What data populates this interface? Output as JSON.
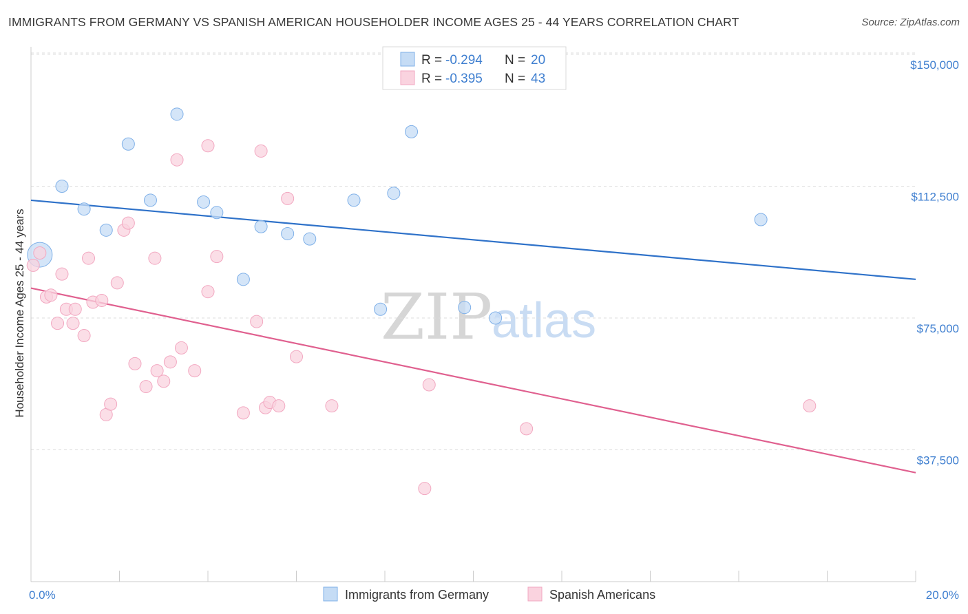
{
  "header": {
    "title": "IMMIGRANTS FROM GERMANY VS SPANISH AMERICAN HOUSEHOLDER INCOME AGES 25 - 44 YEARS CORRELATION CHART",
    "source": "Source: ZipAtlas.com"
  },
  "watermark": {
    "zip": "ZIP",
    "atlas": "atlas"
  },
  "chart_data": {
    "type": "scatter",
    "ylabel": "Householder Income Ages 25 - 44 years",
    "xlim": [
      0,
      20
    ],
    "ylim": [
      0,
      155000
    ],
    "y_ticks": [
      {
        "value": 37500,
        "label": "$37,500"
      },
      {
        "value": 75000,
        "label": "$75,000"
      },
      {
        "value": 112500,
        "label": "$112,500"
      },
      {
        "value": 150000,
        "label": "$150,000"
      }
    ],
    "x_tick_labels": [
      {
        "value": 0,
        "label": "0.0%"
      },
      {
        "value": 20,
        "label": "20.0%"
      }
    ],
    "x_minor_ticks": [
      0,
      2,
      4,
      6,
      8,
      10,
      12,
      14,
      16,
      18,
      20
    ],
    "grid": true,
    "legend": {
      "placement": "top-center",
      "entries": [
        {
          "r_label": "R = ",
          "r_value": "-0.294",
          "n_label": "N = ",
          "n_value": "20"
        },
        {
          "r_label": "R = ",
          "r_value": "-0.395",
          "n_label": "N = ",
          "n_value": "43"
        }
      ]
    },
    "series": [
      {
        "name": "Immigrants from Germany",
        "color": "#7fb0e8",
        "fill": "#c5dcf5",
        "line_color": "#2f72c9",
        "trend": [
          [
            0,
            108500
          ],
          [
            20,
            86000
          ]
        ],
        "points": [
          [
            0.2,
            93000,
            "large"
          ],
          [
            0.7,
            112500
          ],
          [
            1.2,
            106000
          ],
          [
            1.7,
            100000
          ],
          [
            2.2,
            124500
          ],
          [
            2.7,
            108500
          ],
          [
            3.3,
            133000
          ],
          [
            3.9,
            108000
          ],
          [
            4.2,
            105000
          ],
          [
            4.8,
            86000
          ],
          [
            5.2,
            101000
          ],
          [
            5.8,
            99000
          ],
          [
            6.3,
            97500
          ],
          [
            7.3,
            108500
          ],
          [
            7.9,
            77500
          ],
          [
            8.2,
            110500
          ],
          [
            8.6,
            128000
          ],
          [
            9.8,
            78000
          ],
          [
            10.5,
            75000
          ],
          [
            16.5,
            103000
          ]
        ]
      },
      {
        "name": "Spanish Americans",
        "color": "#f2a7c0",
        "fill": "#fad3df",
        "line_color": "#e0608f",
        "trend": [
          [
            0,
            83500
          ],
          [
            20,
            31000
          ]
        ],
        "points": [
          [
            0.05,
            90000
          ],
          [
            0.2,
            93500
          ],
          [
            0.35,
            81000
          ],
          [
            0.45,
            81500
          ],
          [
            0.6,
            73500
          ],
          [
            0.7,
            87500
          ],
          [
            0.8,
            77500
          ],
          [
            0.95,
            73500
          ],
          [
            1.0,
            77500
          ],
          [
            1.2,
            70000
          ],
          [
            1.3,
            92000
          ],
          [
            1.4,
            79500
          ],
          [
            1.6,
            80000
          ],
          [
            1.7,
            47500
          ],
          [
            1.8,
            50500
          ],
          [
            1.95,
            85000
          ],
          [
            2.1,
            100000
          ],
          [
            2.2,
            102000
          ],
          [
            2.35,
            62000
          ],
          [
            2.6,
            55500
          ],
          [
            2.8,
            92000
          ],
          [
            2.85,
            60000
          ],
          [
            3.0,
            57000
          ],
          [
            3.15,
            62500
          ],
          [
            3.3,
            120000
          ],
          [
            3.4,
            66500
          ],
          [
            3.7,
            60000
          ],
          [
            4.0,
            82500
          ],
          [
            4.0,
            124000
          ],
          [
            4.2,
            92500
          ],
          [
            4.8,
            48000
          ],
          [
            5.1,
            74000
          ],
          [
            5.2,
            122500
          ],
          [
            5.3,
            49500
          ],
          [
            5.4,
            51000
          ],
          [
            5.6,
            50000
          ],
          [
            5.8,
            109000
          ],
          [
            6.0,
            64000
          ],
          [
            6.8,
            50000
          ],
          [
            8.9,
            26500
          ],
          [
            9.0,
            56000
          ],
          [
            11.2,
            43500
          ],
          [
            17.6,
            50000
          ]
        ]
      }
    ]
  }
}
